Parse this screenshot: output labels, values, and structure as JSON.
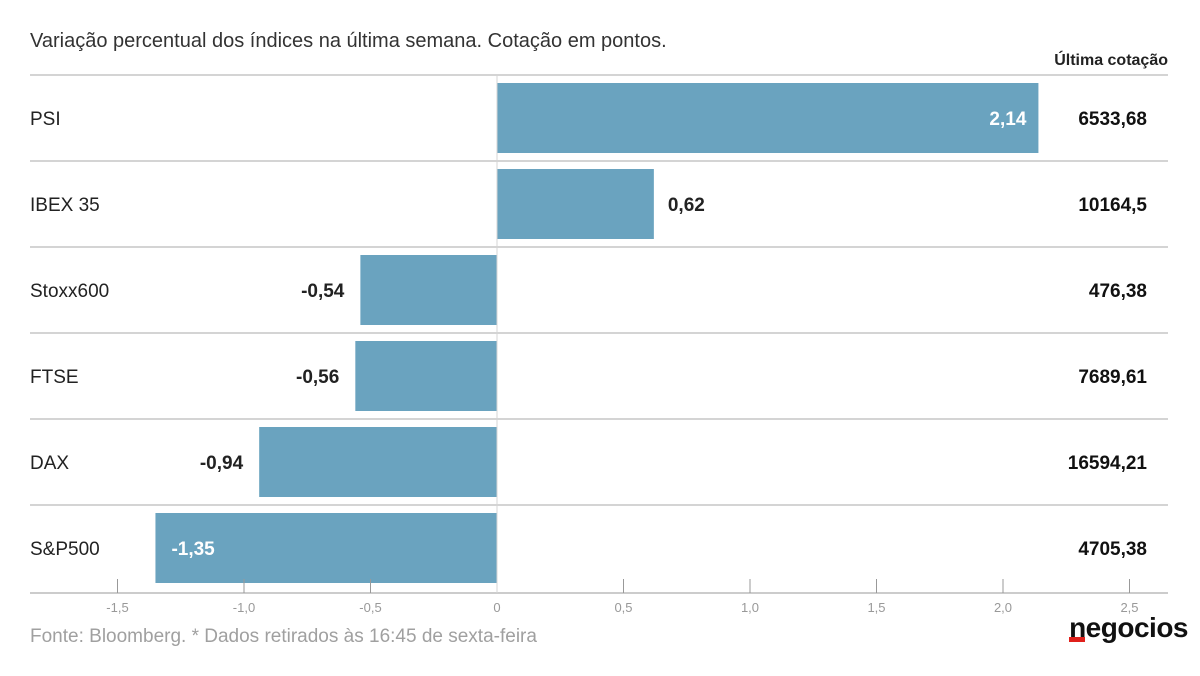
{
  "subtitle": "Variação percentual dos índices na última semana. Cotação em pontos.",
  "column_header": "Última cotação",
  "source": "Fonte: Bloomberg.  * Dados retirados às 16:45 de sexta-feira",
  "logo": "negocios",
  "colors": {
    "bar": "#6aa3bf",
    "grid": "#d4d4d4",
    "axis": "#999999",
    "value_inside": "#ffffff",
    "value_outside": "#222222"
  },
  "chart_data": {
    "type": "bar",
    "orientation": "horizontal",
    "title": "",
    "xlabel": "",
    "ylabel": "",
    "categories": [
      "PSI",
      "IBEX 35",
      "Stoxx600",
      "FTSE",
      "DAX",
      "S&P500"
    ],
    "values": [
      2.14,
      0.62,
      -0.54,
      -0.56,
      -0.94,
      -1.35
    ],
    "value_labels": [
      "2,14",
      "0,62",
      "-0,54",
      "-0,56",
      "-0,94",
      "-1,35"
    ],
    "inside_label": [
      true,
      false,
      false,
      false,
      false,
      true
    ],
    "last_prices": [
      "6533,68",
      "10164,5",
      "476,38",
      "7689,61",
      "16594,21",
      "4705,38"
    ],
    "xlim": [
      -1.5,
      2.5
    ],
    "xticks": [
      -1.5,
      -1.0,
      -0.5,
      0,
      0.5,
      1.0,
      1.5,
      2.0,
      2.5
    ],
    "xtick_labels": [
      "-1,5",
      "-1,0",
      "-0,5",
      "0",
      "0,5",
      "1,0",
      "1,5",
      "2,0",
      "2,5"
    ],
    "grid": true
  }
}
